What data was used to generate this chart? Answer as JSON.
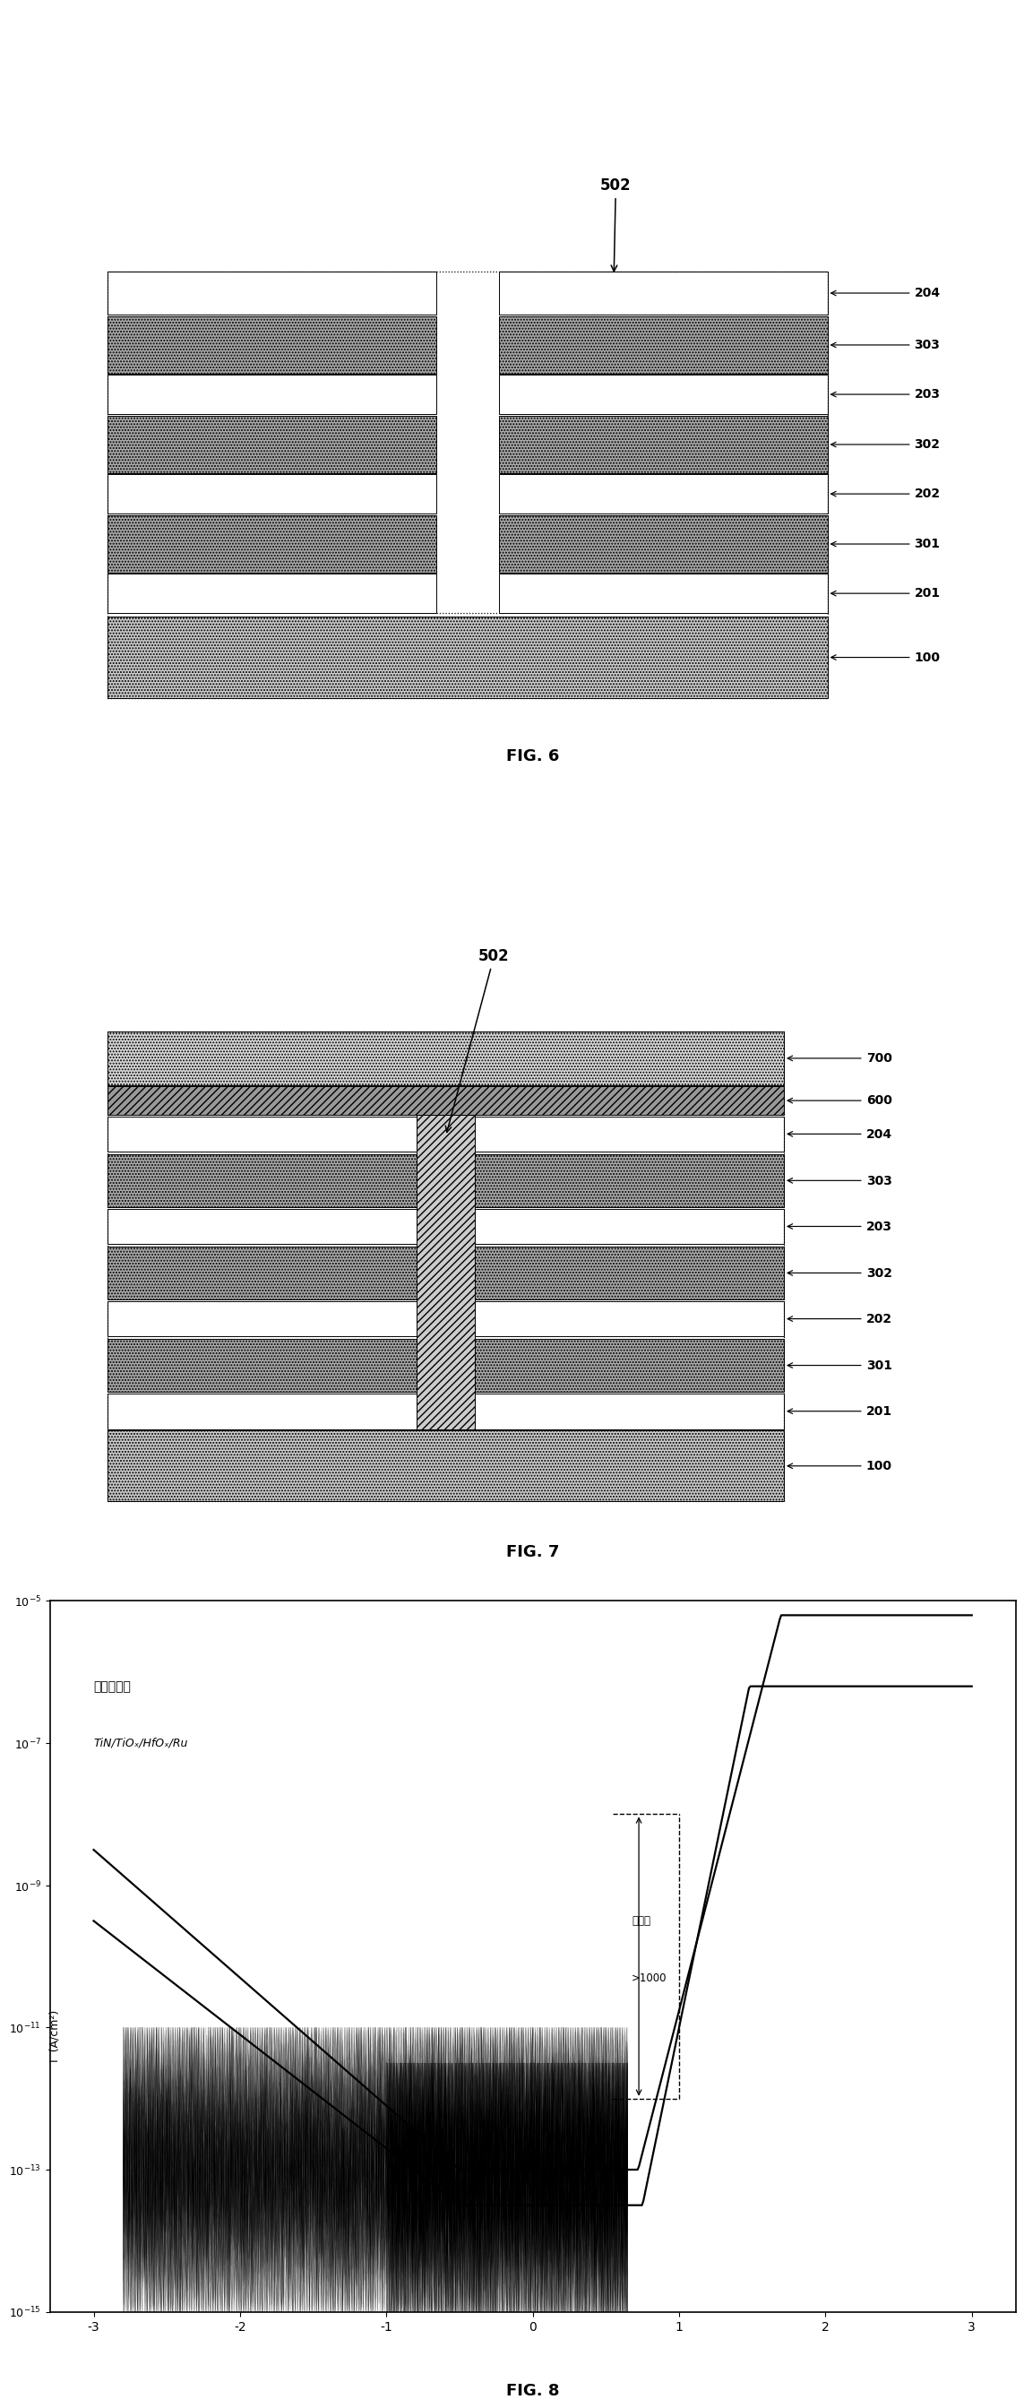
{
  "fig_width": 11.72,
  "fig_height": 26.77,
  "background_color": "#ffffff",
  "fig6_title": "FIG. 6",
  "fig7_title": "FIG. 7",
  "fig8_title": "FIG. 8",
  "fig8_annotation1": "器件结构：",
  "fig8_annotation2": "TiN/TiOₓ/HfOₓ/Ru",
  "fig8_selectivity_label": "选择比",
  "fig8_selectivity_value": ">1000"
}
